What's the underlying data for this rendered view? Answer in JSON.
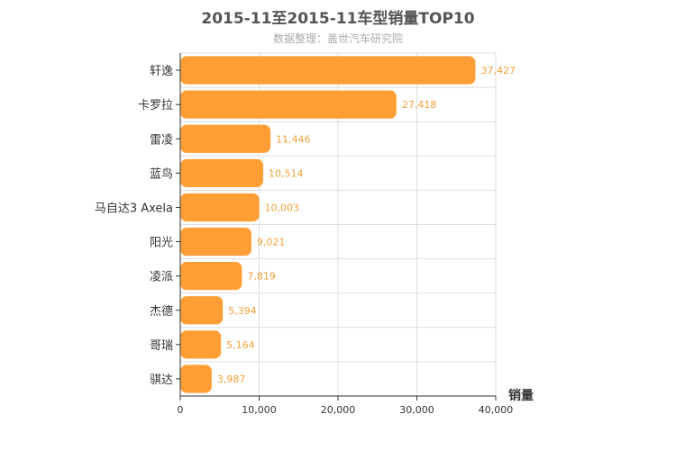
{
  "chart_data": {
    "type": "bar",
    "orientation": "horizontal",
    "title": "2015-11至2015-11车型销量TOP10",
    "subtitle": "数据整理：盖世汽车研究院",
    "xlabel": "销量",
    "ylabel": "",
    "categories": [
      "轩逸",
      "卡罗拉",
      "雷凌",
      "蓝鸟",
      "马自达3 Axela",
      "阳光",
      "凌派",
      "杰德",
      "哥瑞",
      "骐达"
    ],
    "values": [
      37427,
      27418,
      11446,
      10514,
      10003,
      9021,
      7819,
      5394,
      5164,
      3987
    ],
    "value_labels": [
      "37,427",
      "27,418",
      "11,446",
      "10,514",
      "10,003",
      "9,021",
      "7,819",
      "5,394",
      "5,164",
      "3,987"
    ],
    "xlim": [
      0,
      40000
    ],
    "xticks": [
      0,
      10000,
      20000,
      30000,
      40000
    ],
    "xtick_labels": [
      "0",
      "10,000",
      "20,000",
      "30,000",
      "40,000"
    ],
    "grid": true,
    "bar_color": "#ff9e35",
    "label_color": "#f0a23a"
  }
}
